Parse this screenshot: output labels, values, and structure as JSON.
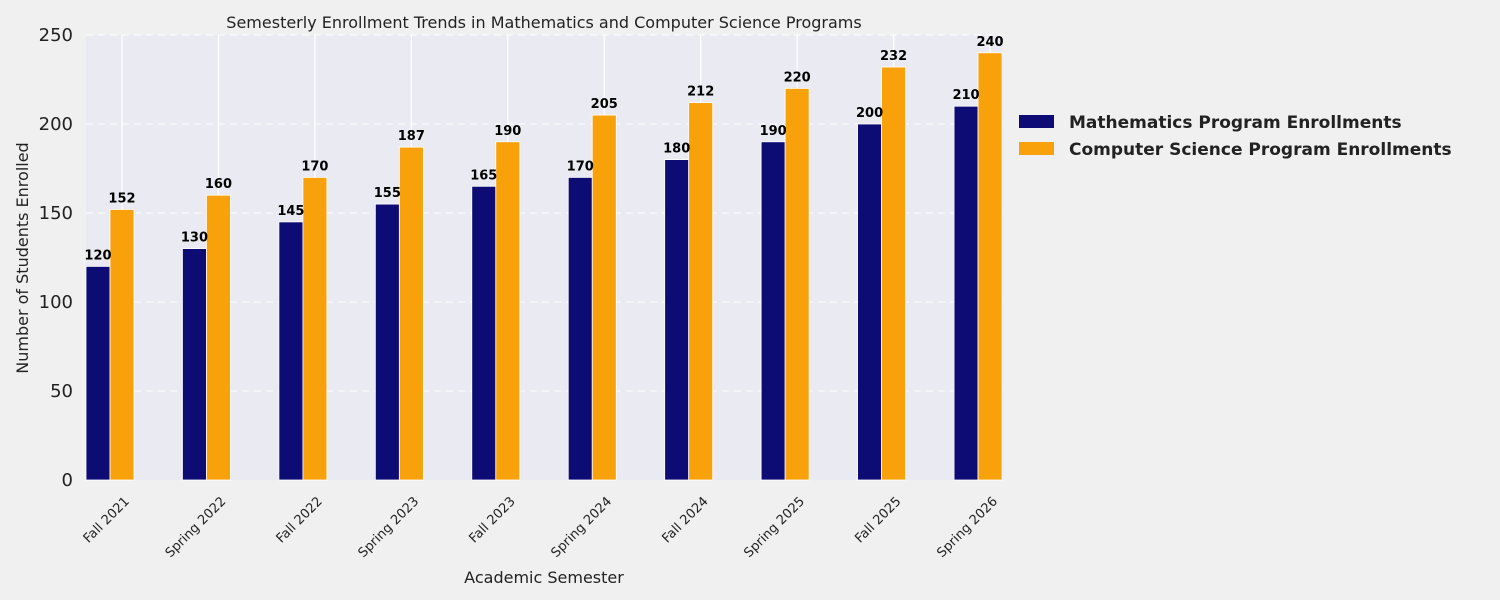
{
  "chart_data": {
    "type": "bar",
    "title": "Semesterly Enrollment Trends in Mathematics and Computer Science Programs",
    "xlabel": "Academic Semester",
    "ylabel": "Number of Students Enrolled",
    "categories": [
      "Fall 2021",
      "Spring 2022",
      "Fall 2022",
      "Spring 2023",
      "Fall 2023",
      "Spring 2024",
      "Fall 2024",
      "Spring 2025",
      "Fall 2025",
      "Spring 2026"
    ],
    "series": [
      {
        "name": "Mathematics Program Enrollments",
        "color": "#0d0c74",
        "values": [
          120,
          130,
          145,
          155,
          165,
          170,
          180,
          190,
          200,
          210
        ]
      },
      {
        "name": "Computer Science Program Enrollments",
        "color": "#f9a10a",
        "values": [
          152,
          160,
          170,
          187,
          190,
          205,
          212,
          220,
          232,
          240
        ]
      }
    ],
    "ylim": [
      0,
      250
    ],
    "yticks": [
      0,
      50,
      100,
      150,
      200,
      250
    ],
    "grid": true,
    "legend_position": "right",
    "background_color": "#eaeaf2"
  }
}
